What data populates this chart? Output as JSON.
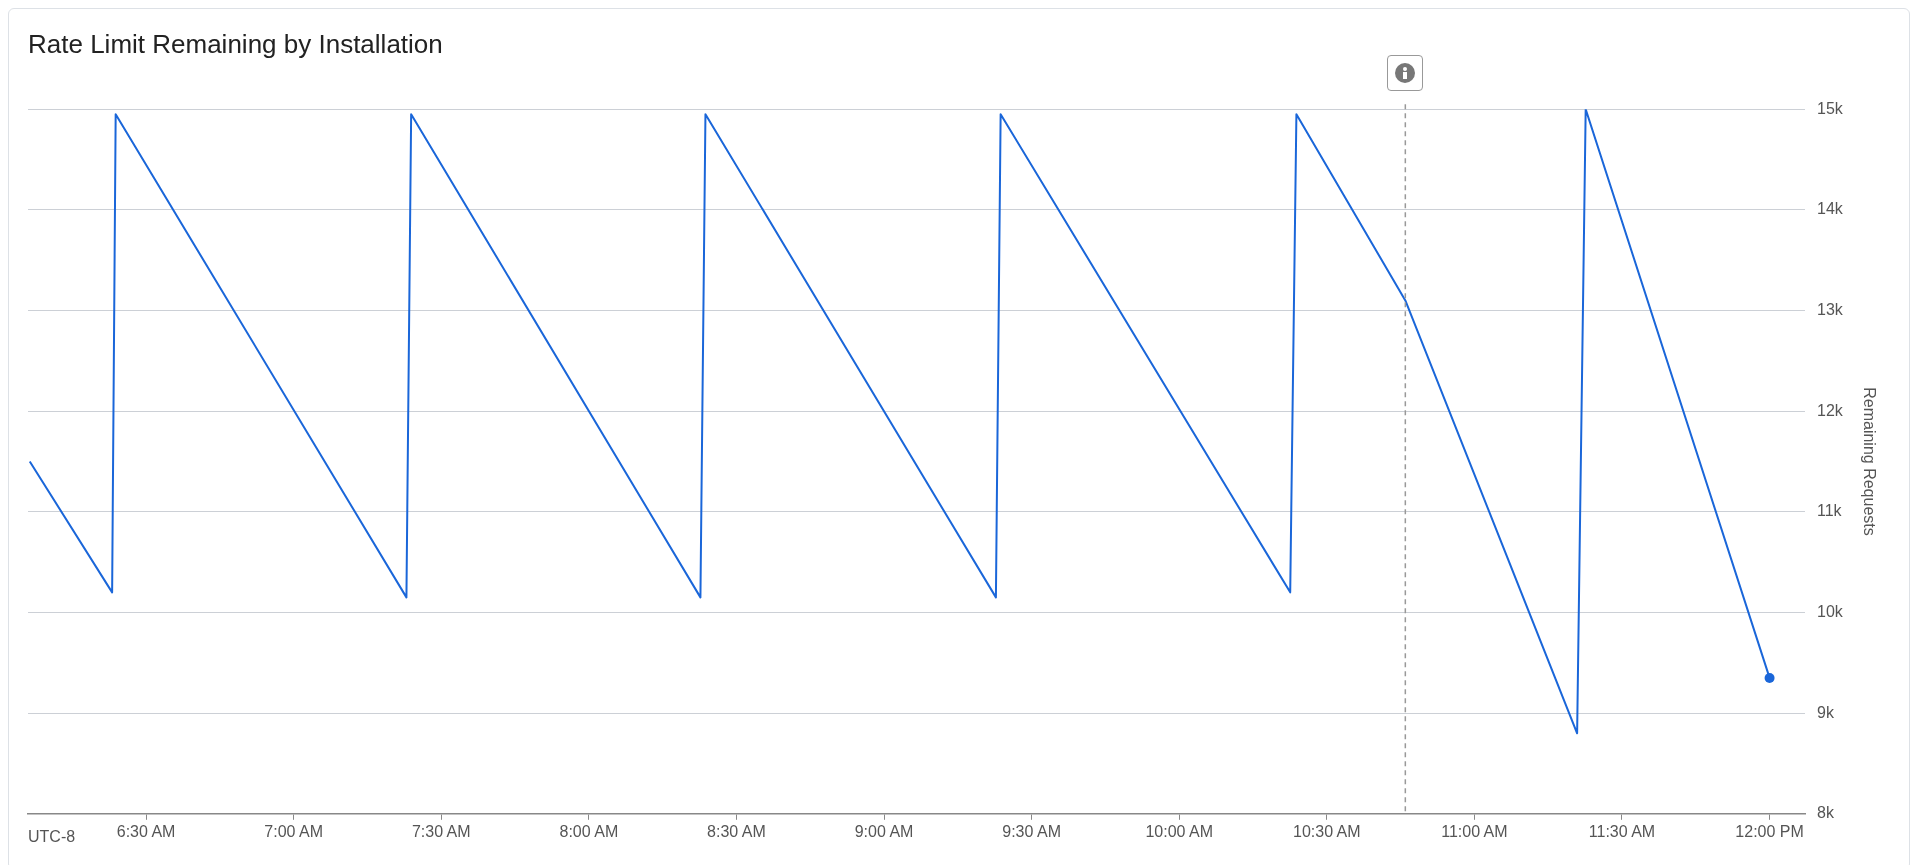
{
  "chart_data": {
    "type": "line",
    "title": "Rate Limit Remaining by Installation",
    "ylabel": "Remaining Requests",
    "annotations": [
      "UTC-8"
    ],
    "series": [
      {
        "color": "#1a66d9",
        "x": [
          6.106,
          6.385,
          6.397,
          7.382,
          7.398,
          8.378,
          8.395,
          9.379,
          9.395,
          10.376,
          10.397,
          10.766,
          11.348,
          11.377,
          12.0
        ],
        "values": [
          11500,
          10200,
          14950,
          10150,
          14950,
          10150,
          14950,
          10150,
          14950,
          10200,
          14950,
          13100,
          8800,
          15000,
          9350
        ]
      }
    ],
    "xlim": [
      6.1,
      12.12
    ],
    "xticks": [
      {
        "value": 6.5,
        "label": "6:30 AM"
      },
      {
        "value": 7,
        "label": "7:00 AM"
      },
      {
        "value": 7.5,
        "label": "7:30 AM"
      },
      {
        "value": 8,
        "label": "8:00 AM"
      },
      {
        "value": 8.5,
        "label": "8:30 AM"
      },
      {
        "value": 9,
        "label": "9:00 AM"
      },
      {
        "value": 9.5,
        "label": "9:30 AM"
      },
      {
        "value": 10,
        "label": "10:00 AM"
      },
      {
        "value": 10.5,
        "label": "10:30 AM"
      },
      {
        "value": 11,
        "label": "11:00 AM"
      },
      {
        "value": 11.5,
        "label": "11:30 AM"
      },
      {
        "value": 12,
        "label": "12:00 PM"
      }
    ],
    "ylim": [
      8000,
      15000
    ],
    "yticks": [
      {
        "value": 8000,
        "label": "8k"
      },
      {
        "value": 9000,
        "label": "9k"
      },
      {
        "value": 10000,
        "label": "10k"
      },
      {
        "value": 11000,
        "label": "11k"
      },
      {
        "value": 12000,
        "label": "12k"
      },
      {
        "value": 13000,
        "label": "13k"
      },
      {
        "value": 14000,
        "label": "14k"
      },
      {
        "value": 15000,
        "label": "15k"
      }
    ],
    "grid": "y",
    "legend": false,
    "ref_lines": [
      {
        "axis": "x",
        "value": 10.766,
        "color": "#999999",
        "line_style": "dashed"
      }
    ]
  }
}
